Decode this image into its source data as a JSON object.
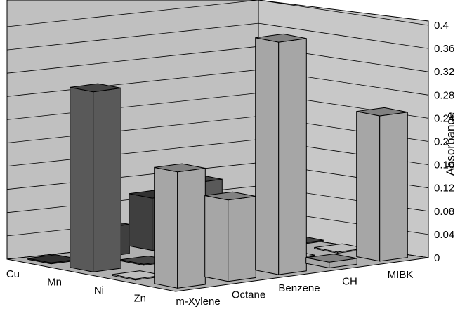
{
  "chart_data": {
    "type": "bar",
    "style": "3d-grouped-bar",
    "title": "",
    "ylabel": "Absorbance",
    "xlabel": "",
    "ylim": [
      0,
      0.4
    ],
    "y_ticks": [
      "0",
      "0.04",
      "0.08",
      "0.12",
      "0.16",
      "0.2",
      "0.24",
      "0.28",
      "0.32",
      "0.36",
      "0.4"
    ],
    "grid": true,
    "legend": "none",
    "categories": [
      "m-Xylene",
      "Octane",
      "Benzene",
      "CH",
      "MIBK"
    ],
    "series": [
      {
        "name": "Zn",
        "color": "#a6a6a6",
        "values": [
          0.2,
          0.14,
          0.4,
          0.01,
          0.25
        ]
      },
      {
        "name": "Ni",
        "color": "#f4f4f4",
        "values": [
          0.0,
          0.0,
          0.03,
          0.0,
          0.0
        ]
      },
      {
        "name": "Mn",
        "color": "#595959",
        "values": [
          0.31,
          0.0,
          0.13,
          0.06,
          0.0
        ]
      },
      {
        "name": "Cu",
        "color": "#3f3f3f",
        "values": [
          0.0,
          0.05,
          0.09,
          0.0,
          0.0
        ]
      }
    ],
    "note_series_labels": "Series labels are printed along the depth axis: Cu, Mn, Ni, Zn"
  }
}
